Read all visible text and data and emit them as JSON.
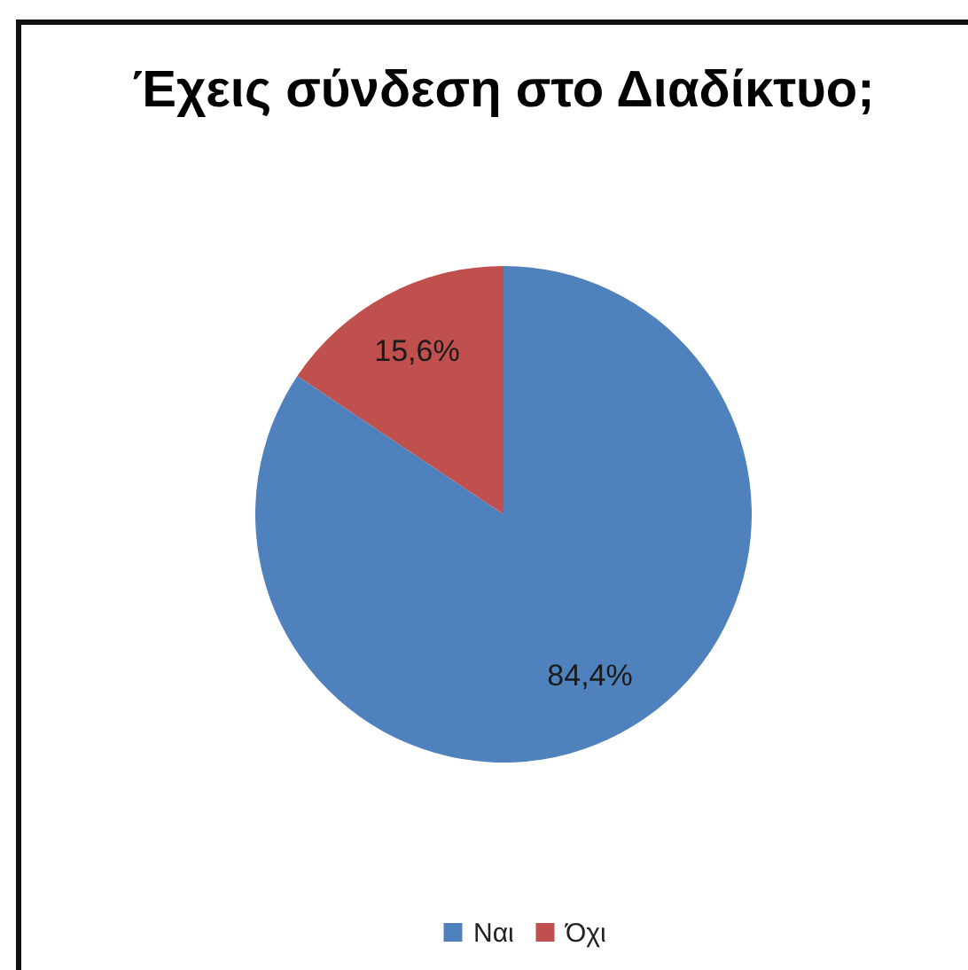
{
  "chart_data": {
    "type": "pie",
    "title": "Έχεις σύνδεση στο Διαδίκτυο;",
    "categories": [
      "Ναι",
      "Όχι"
    ],
    "values": [
      84.4,
      15.6
    ],
    "colors": [
      "#4f81bd",
      "#c0504d"
    ],
    "value_labels": [
      "84,4%",
      "15,6%"
    ],
    "legend": "bottom"
  }
}
